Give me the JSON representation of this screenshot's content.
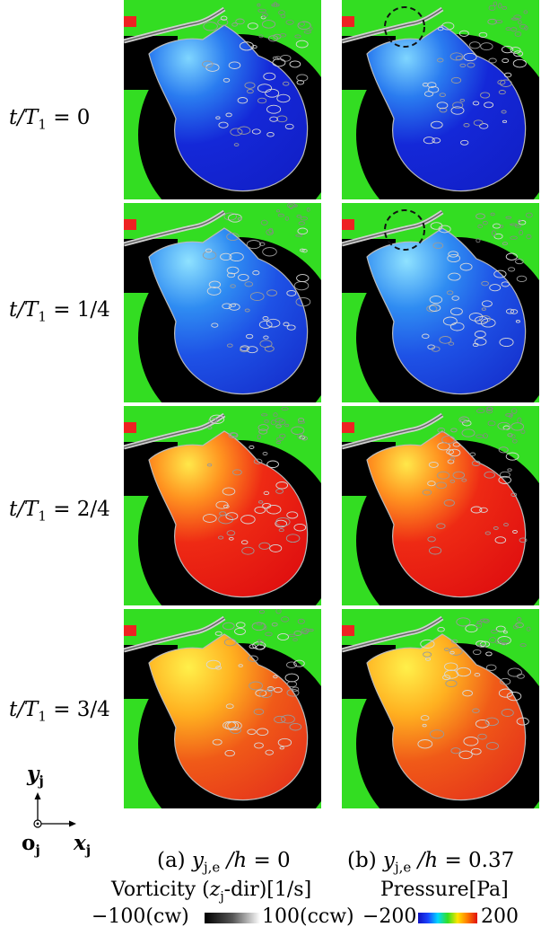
{
  "row_labels": [
    {
      "prefix": "t/T",
      "sub": "1",
      "rest": " = 0"
    },
    {
      "prefix": "t/T",
      "sub": "1",
      "rest": " = 1/4"
    },
    {
      "prefix": "t/T",
      "sub": "1",
      "rest": " = 2/4"
    },
    {
      "prefix": "t/T",
      "sub": "1",
      "rest": " = 3/4"
    }
  ],
  "captions": [
    {
      "prefix": "(a) ",
      "var": "y",
      "sub": "j,e",
      "mid": " /h",
      "rest": " = 0"
    },
    {
      "prefix": "(b) ",
      "var": "y",
      "sub": "j,e",
      "mid": " /h",
      "rest": " = 0.37"
    }
  ],
  "axes": {
    "y_var": "y",
    "y_sub": "j",
    "x_var": "x",
    "x_sub": "j",
    "o_var": "o",
    "o_sub": "j"
  },
  "legend": {
    "vorticity_title_a": "Vorticity (",
    "vorticity_title_var": "z",
    "vorticity_title_sub": "j",
    "vorticity_title_b": "-dir)[1/s]",
    "vorticity_min": "−100(cw)",
    "vorticity_max": "100(ccw)",
    "pressure_title": "Pressure[Pa]",
    "pressure_min": "−200",
    "pressure_max": "200"
  },
  "colors": {
    "background_field": "#33dd22",
    "solid_wall": "#000000",
    "pressure_low": "#1a22dd",
    "pressure_high": "#ee1a1a"
  },
  "panels": [
    {
      "row": 0,
      "column": "a",
      "pressure_state": "low",
      "highlight_circle": false
    },
    {
      "row": 0,
      "column": "b",
      "pressure_state": "low",
      "highlight_circle": true
    },
    {
      "row": 1,
      "column": "a",
      "pressure_state": "low",
      "highlight_circle": false
    },
    {
      "row": 1,
      "column": "b",
      "pressure_state": "low",
      "highlight_circle": true
    },
    {
      "row": 2,
      "column": "a",
      "pressure_state": "high",
      "highlight_circle": false
    },
    {
      "row": 2,
      "column": "b",
      "pressure_state": "high",
      "highlight_circle": false
    },
    {
      "row": 3,
      "column": "a",
      "pressure_state": "high",
      "highlight_circle": false
    },
    {
      "row": 3,
      "column": "b",
      "pressure_state": "high",
      "highlight_circle": false
    }
  ]
}
